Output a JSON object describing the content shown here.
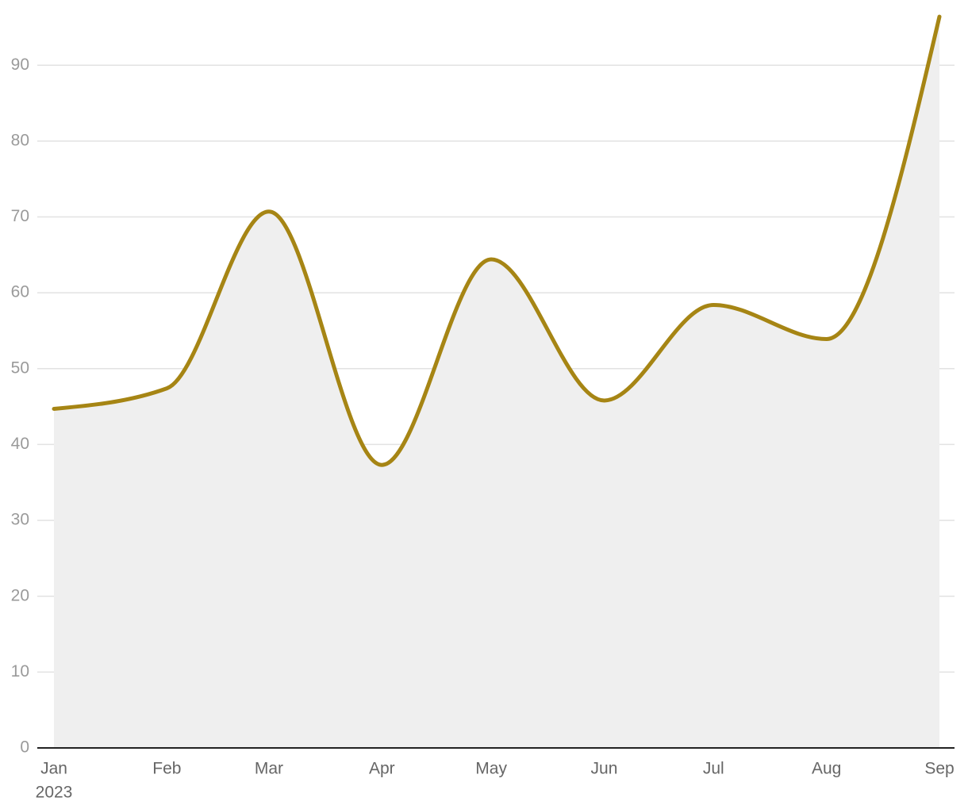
{
  "chart_data": {
    "type": "area",
    "x": [
      "2023-01",
      "2023-02",
      "2023-03",
      "2023-04",
      "2023-05",
      "2023-06",
      "2023-07",
      "2023-08",
      "2023-09"
    ],
    "values": [
      44.7,
      47.4,
      70.7,
      37.3,
      64.4,
      45.8,
      58.4,
      53.9,
      96.4
    ],
    "color": "#a68514",
    "fill": "#efefef",
    "xlim": [
      "2023-01",
      "2023-09"
    ],
    "xticks": [
      {
        "value": "2023-01",
        "label": "Jan"
      },
      {
        "value": "2023-02",
        "label": "Feb"
      },
      {
        "value": "2023-03",
        "label": "Mar"
      },
      {
        "value": "2023-04",
        "label": "Apr"
      },
      {
        "value": "2023-05",
        "label": "May"
      },
      {
        "value": "2023-06",
        "label": "Jun"
      },
      {
        "value": "2023-07",
        "label": "Jul"
      },
      {
        "value": "2023-08",
        "label": "Aug"
      },
      {
        "value": "2023-09",
        "label": "Sep"
      }
    ],
    "x_year_label": "2023",
    "ylim": [
      0,
      96.4
    ],
    "yticks": [
      0,
      10,
      20,
      30,
      40,
      50,
      60,
      70,
      80,
      90
    ],
    "grid": true
  }
}
